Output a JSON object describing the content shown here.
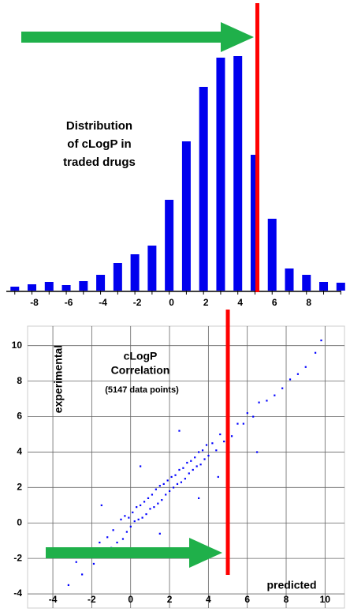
{
  "chart_data": [
    {
      "type": "bar",
      "annotations": [
        "Distribution",
        "of cLogP in",
        "traded drugs"
      ],
      "x": [
        -9,
        -8,
        -7,
        -6,
        -5,
        -4,
        -3,
        -2,
        -1,
        0,
        1,
        2,
        3,
        4,
        5,
        6,
        7,
        8,
        9,
        10
      ],
      "values": [
        5,
        8,
        11,
        7,
        12,
        20,
        35,
        46,
        57,
        115,
        189,
        258,
        295,
        297,
        172,
        91,
        28,
        20,
        11,
        10
      ],
      "color": "#0000ee",
      "xlim": [
        -10,
        10.4
      ],
      "xticks": [
        -8,
        -6,
        -4,
        -2,
        0,
        2,
        4,
        6,
        8
      ],
      "ylim": [
        0,
        300
      ],
      "reference_line": {
        "x": 5,
        "color": "#ff0000"
      }
    },
    {
      "type": "scatter",
      "annotations": [
        "cLogP",
        "Correlation",
        "(5147 data points)"
      ],
      "xlabel": "predicted",
      "ylabel": "experimental",
      "x": [
        -3.2,
        -2.8,
        -2.5,
        -2.1,
        -1.9,
        -1.6,
        -1.4,
        -1.2,
        -1.0,
        -0.9,
        -0.7,
        -0.5,
        -0.4,
        -0.3,
        -0.2,
        -0.1,
        0,
        0.1,
        0.2,
        0.3,
        0.4,
        0.5,
        0.6,
        0.7,
        0.8,
        0.9,
        1.0,
        1.1,
        1.2,
        1.3,
        1.4,
        1.5,
        1.6,
        1.7,
        1.8,
        1.9,
        2.0,
        2.1,
        2.2,
        2.3,
        2.4,
        2.5,
        2.6,
        2.7,
        2.8,
        2.9,
        3.0,
        3.1,
        3.2,
        3.3,
        3.4,
        3.5,
        3.6,
        3.7,
        3.8,
        3.9,
        4.0,
        4.2,
        4.4,
        4.6,
        4.8,
        5.0,
        5.2,
        5.5,
        5.8,
        6.0,
        6.3,
        6.6,
        7.0,
        7.4,
        7.8,
        8.2,
        8.6,
        9.0,
        9.5,
        9.8,
        0.5,
        1.5,
        2.5,
        3.5,
        -1.5,
        4.5,
        6.5
      ],
      "y": [
        -3.5,
        -2.2,
        -2.9,
        -1.6,
        -2.3,
        -1.1,
        -1.9,
        -0.8,
        -1.4,
        -0.4,
        -1.1,
        0.2,
        -0.9,
        0.4,
        -0.5,
        0.3,
        -0.2,
        0.6,
        0.1,
        0.9,
        0.2,
        1.0,
        0.3,
        1.2,
        0.5,
        1.4,
        0.8,
        1.6,
        0.9,
        1.9,
        1.1,
        2.1,
        1.3,
        2.2,
        1.6,
        2.4,
        1.8,
        2.6,
        2.0,
        2.7,
        2.2,
        3.0,
        2.3,
        3.1,
        2.5,
        3.4,
        2.8,
        3.5,
        3.0,
        3.7,
        3.2,
        4.0,
        3.3,
        4.1,
        3.6,
        4.4,
        3.8,
        4.5,
        4.1,
        5.0,
        4.6,
        5.3,
        4.9,
        5.6,
        5.6,
        6.2,
        6.0,
        6.8,
        6.9,
        7.2,
        7.6,
        8.1,
        8.4,
        8.8,
        9.6,
        10.3,
        3.2,
        -0.6,
        5.2,
        1.4,
        1.0,
        2.6,
        4.0
      ],
      "color": "#0000ff",
      "xlim": [
        -5.3,
        11
      ],
      "xticks": [
        -4,
        -2,
        0,
        2,
        4,
        6,
        8,
        10
      ],
      "ylim": [
        -4.8,
        11.1
      ],
      "yticks": [
        -4,
        -2,
        0,
        2,
        4,
        6,
        8,
        10
      ],
      "grid": true,
      "reference_line": {
        "x": 5,
        "color": "#ff0000"
      }
    }
  ]
}
